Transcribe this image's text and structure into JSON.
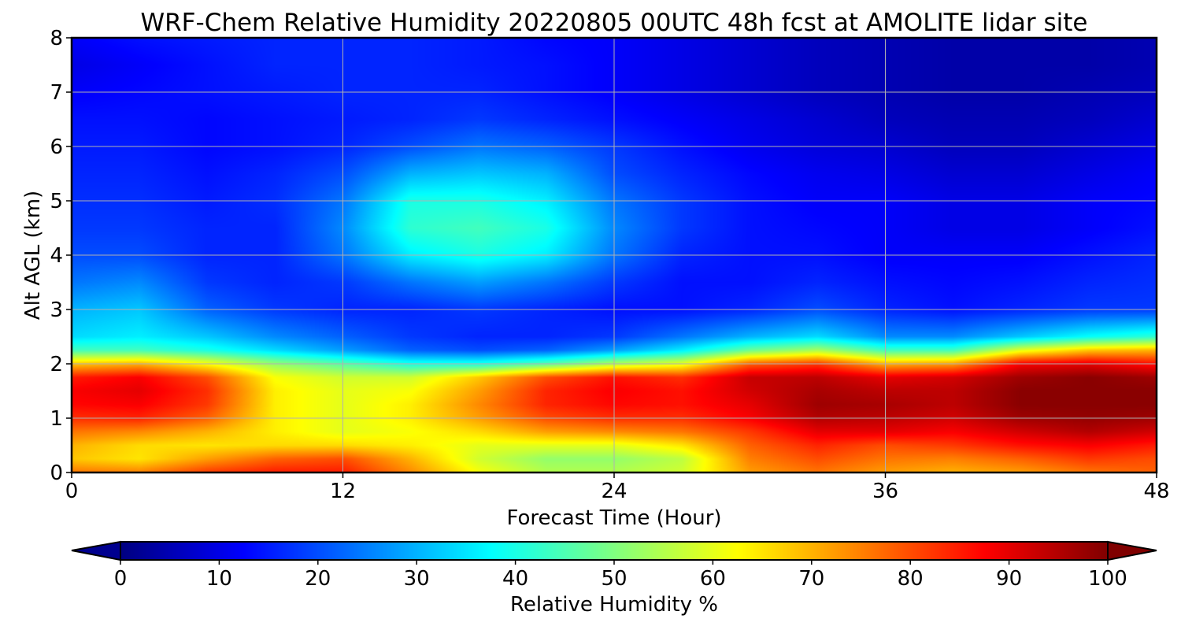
{
  "chart_data": {
    "type": "heatmap",
    "title": "WRF-Chem Relative Humidity 20220805 00UTC 48h fcst at AMOLITE lidar site",
    "xlabel": "Forecast Time (Hour)",
    "ylabel": "Alt AGL (km)",
    "xlim": [
      0,
      48
    ],
    "ylim": [
      0,
      8
    ],
    "x_ticks": [
      "0",
      "12",
      "24",
      "36",
      "48"
    ],
    "y_ticks": [
      "0",
      "1",
      "2",
      "3",
      "4",
      "5",
      "6",
      "7",
      "8"
    ],
    "grid": true,
    "colormap": "jet",
    "colorbar": {
      "label": "Relative Humidity %",
      "range": [
        0,
        100
      ],
      "ticks": [
        "0",
        "10",
        "20",
        "30",
        "40",
        "50",
        "60",
        "70",
        "80",
        "90",
        "100"
      ],
      "extend": "both",
      "orientation": "horizontal"
    },
    "x": [
      0,
      3,
      6,
      9,
      12,
      15,
      18,
      21,
      24,
      27,
      30,
      33,
      36,
      39,
      42,
      45,
      48
    ],
    "y": [
      0,
      0.25,
      0.5,
      0.75,
      1,
      1.25,
      1.5,
      1.75,
      2,
      2.25,
      2.5,
      3,
      3.5,
      4,
      4.5,
      5,
      5.5,
      6,
      6.5,
      7,
      7.5,
      8
    ],
    "z_rh_percent": [
      [
        76,
        75,
        82,
        85,
        85,
        74,
        62,
        55,
        55,
        58,
        72,
        76,
        72,
        70,
        72,
        76,
        78
      ],
      [
        68,
        65,
        72,
        78,
        80,
        70,
        58,
        52,
        52,
        56,
        75,
        80,
        76,
        75,
        78,
        82,
        80
      ],
      [
        70,
        66,
        65,
        66,
        66,
        64,
        60,
        60,
        60,
        65,
        78,
        84,
        80,
        82,
        86,
        88,
        85
      ],
      [
        76,
        74,
        70,
        64,
        60,
        62,
        66,
        72,
        74,
        76,
        82,
        90,
        90,
        88,
        92,
        95,
        92
      ],
      [
        83,
        84,
        78,
        64,
        60,
        64,
        72,
        80,
        83,
        83,
        88,
        95,
        94,
        92,
        97,
        98,
        97
      ],
      [
        87,
        88,
        82,
        64,
        60,
        64,
        74,
        84,
        87,
        86,
        90,
        97,
        96,
        94,
        99,
        99,
        99
      ],
      [
        88,
        90,
        83,
        64,
        60,
        62,
        72,
        84,
        88,
        86,
        92,
        96,
        94,
        94,
        99,
        99,
        99
      ],
      [
        85,
        88,
        80,
        62,
        58,
        58,
        68,
        80,
        86,
        83,
        93,
        94,
        90,
        92,
        97,
        99,
        97
      ],
      [
        68,
        70,
        62,
        52,
        46,
        40,
        40,
        46,
        55,
        60,
        78,
        82,
        70,
        72,
        88,
        90,
        86
      ],
      [
        44,
        44,
        40,
        34,
        28,
        22,
        20,
        22,
        28,
        36,
        48,
        54,
        44,
        44,
        60,
        68,
        70
      ],
      [
        34,
        36,
        32,
        26,
        22,
        18,
        16,
        16,
        18,
        24,
        30,
        34,
        26,
        26,
        32,
        38,
        42
      ],
      [
        30,
        32,
        22,
        18,
        16,
        16,
        18,
        16,
        14,
        14,
        16,
        20,
        16,
        14,
        16,
        18,
        18
      ],
      [
        24,
        26,
        18,
        16,
        18,
        24,
        28,
        24,
        18,
        14,
        14,
        16,
        14,
        13,
        14,
        16,
        17
      ],
      [
        20,
        20,
        16,
        16,
        24,
        36,
        40,
        36,
        24,
        16,
        14,
        14,
        12,
        12,
        12,
        14,
        16
      ],
      [
        18,
        18,
        16,
        16,
        26,
        42,
        44,
        40,
        26,
        18,
        14,
        13,
        12,
        10,
        10,
        12,
        14
      ],
      [
        17,
        17,
        15,
        17,
        24,
        40,
        40,
        36,
        24,
        18,
        14,
        12,
        12,
        10,
        10,
        12,
        13
      ],
      [
        16,
        16,
        14,
        16,
        20,
        30,
        32,
        30,
        20,
        16,
        13,
        11,
        10,
        8,
        8,
        10,
        12
      ],
      [
        15,
        15,
        13,
        14,
        16,
        20,
        24,
        22,
        18,
        14,
        11,
        9,
        8,
        6,
        6,
        8,
        10
      ],
      [
        14,
        14,
        13,
        14,
        15,
        16,
        18,
        16,
        14,
        12,
        10,
        8,
        6,
        5,
        5,
        6,
        8
      ],
      [
        12,
        13,
        14,
        15,
        16,
        16,
        16,
        14,
        12,
        10,
        8,
        6,
        5,
        4,
        4,
        5,
        6
      ],
      [
        10,
        12,
        14,
        16,
        16,
        16,
        15,
        14,
        12,
        10,
        8,
        6,
        5,
        4,
        4,
        4,
        5
      ],
      [
        12,
        14,
        15,
        16,
        16,
        16,
        15,
        13,
        12,
        10,
        8,
        6,
        5,
        4,
        4,
        4,
        5
      ]
    ]
  }
}
